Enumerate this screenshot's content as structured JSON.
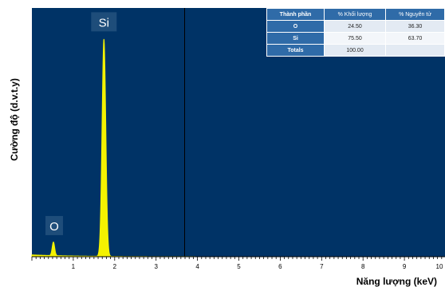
{
  "chart_data": {
    "type": "line",
    "title": "",
    "xlabel": "Năng lượng (keV)",
    "ylabel": "Cường độ (d.v.t.y)",
    "xlim": [
      0,
      10
    ],
    "ylim": [
      0,
      100
    ],
    "x_ticks": [
      "1",
      "2",
      "3",
      "4",
      "5",
      "6",
      "7",
      "8",
      "9",
      "10"
    ],
    "grid": false,
    "marker_line_x": 3.69,
    "peaks": [
      {
        "label": "O",
        "x": 0.52,
        "height": 6,
        "width": 0.03
      },
      {
        "label": "Si",
        "x": 1.74,
        "height": 96,
        "width": 0.045
      }
    ],
    "colors": {
      "background": "#003366",
      "trace": "#f4f200",
      "label_box": "#1e4d7a"
    }
  },
  "table": {
    "headers": [
      "Thành phần",
      "% Khối lượng",
      "% Nguyên tử"
    ],
    "rows": [
      {
        "name": "O",
        "mass": "24.50",
        "atomic": "36.30"
      },
      {
        "name": "Si",
        "mass": "75.50",
        "atomic": "63.70"
      },
      {
        "name": "Totals",
        "mass": "100.00",
        "atomic": ""
      }
    ]
  }
}
